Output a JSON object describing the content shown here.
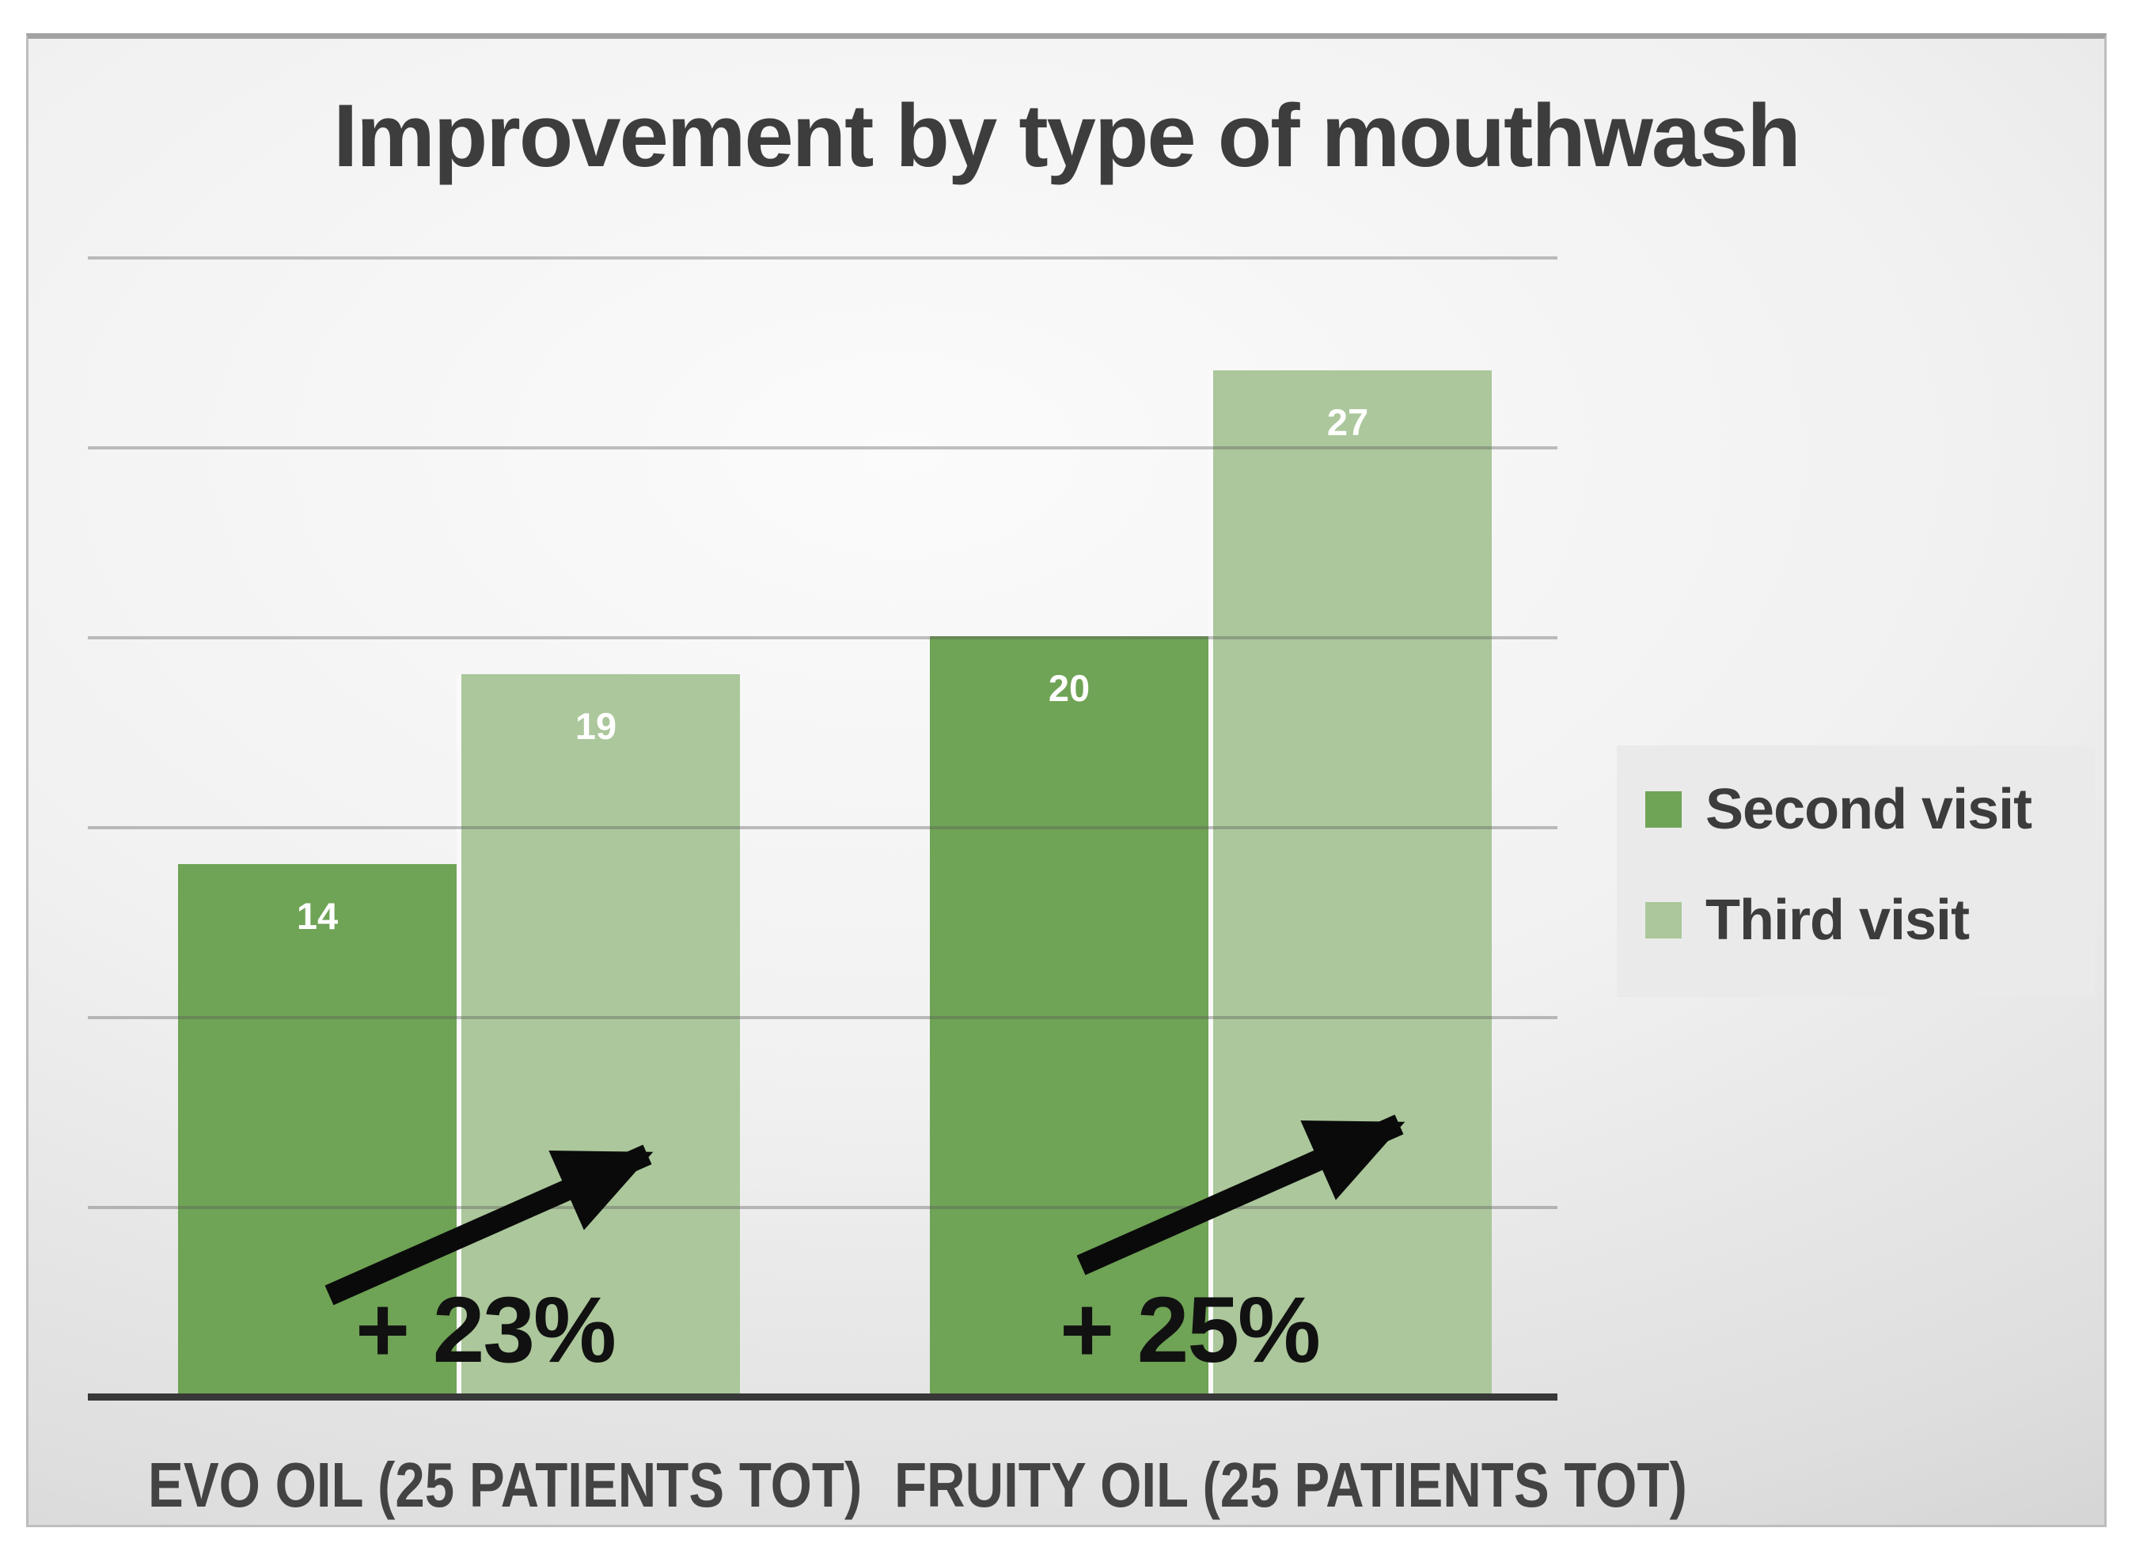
{
  "title": "Improvement by type of mouthwash",
  "chart_data": {
    "type": "bar",
    "title": "Improvement by type of mouthwash",
    "categories": [
      "EVO OIL (25 PATIENTS TOT)",
      "FRUITY OIL (25 PATIENTS TOT)"
    ],
    "series": [
      {
        "name": "Second visit",
        "color": "#6fa355",
        "values": [
          14,
          20
        ]
      },
      {
        "name": "Third visit",
        "color": "#abc79b",
        "values": [
          19,
          27
        ]
      }
    ],
    "annotations": [
      {
        "group": "EVO OIL (25 PATIENTS TOT)",
        "label": "+ 23%"
      },
      {
        "group": "FRUITY OIL (25 PATIENTS TOT)",
        "label": "+ 25%"
      }
    ],
    "xlabel": "",
    "ylabel": "",
    "ylim": [
      0,
      30
    ],
    "grid_step": 5,
    "grid": true,
    "legend_position": "right",
    "value_label_color": "#ffffff",
    "arrow_color": "#0a0a0a"
  },
  "colors": {
    "axis": "#383838",
    "gridline": "#a0a0a0",
    "title_text": "#3d3d3d",
    "category_text": "#434343",
    "legend_background": "#eaeaea",
    "annotation_text": "#111111",
    "panel_edge": "#a2a2a2"
  }
}
